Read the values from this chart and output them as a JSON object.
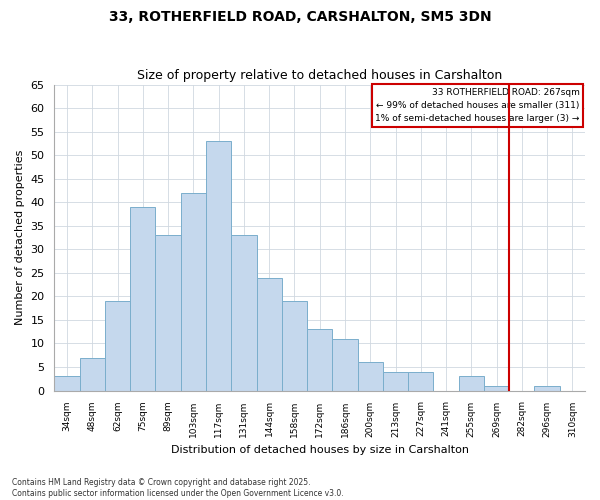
{
  "title": "33, ROTHERFIELD ROAD, CARSHALTON, SM5 3DN",
  "subtitle": "Size of property relative to detached houses in Carshalton",
  "xlabel": "Distribution of detached houses by size in Carshalton",
  "ylabel": "Number of detached properties",
  "categories": [
    "34sqm",
    "48sqm",
    "62sqm",
    "75sqm",
    "89sqm",
    "103sqm",
    "117sqm",
    "131sqm",
    "144sqm",
    "158sqm",
    "172sqm",
    "186sqm",
    "200sqm",
    "213sqm",
    "227sqm",
    "241sqm",
    "255sqm",
    "269sqm",
    "282sqm",
    "296sqm",
    "310sqm"
  ],
  "values": [
    3,
    7,
    19,
    39,
    33,
    42,
    53,
    33,
    24,
    19,
    13,
    11,
    6,
    4,
    4,
    0,
    3,
    1,
    0,
    1,
    0
  ],
  "bar_color": "#c5d8ed",
  "bar_edge_color": "#7aaecc",
  "grid_color": "#d0d8e0",
  "vline_x_index": 17.5,
  "vline_color": "#cc0000",
  "legend_title": "33 ROTHERFIELD ROAD: 267sqm",
  "legend_line1": "← 99% of detached houses are smaller (311)",
  "legend_line2": "1% of semi-detached houses are larger (3) →",
  "legend_box_color": "#cc0000",
  "ylim": [
    0,
    65
  ],
  "yticks": [
    0,
    5,
    10,
    15,
    20,
    25,
    30,
    35,
    40,
    45,
    50,
    55,
    60,
    65
  ],
  "footer1": "Contains HM Land Registry data © Crown copyright and database right 2025.",
  "footer2": "Contains public sector information licensed under the Open Government Licence v3.0.",
  "background_color": "#ffffff",
  "plot_bg_color": "#ffffff"
}
